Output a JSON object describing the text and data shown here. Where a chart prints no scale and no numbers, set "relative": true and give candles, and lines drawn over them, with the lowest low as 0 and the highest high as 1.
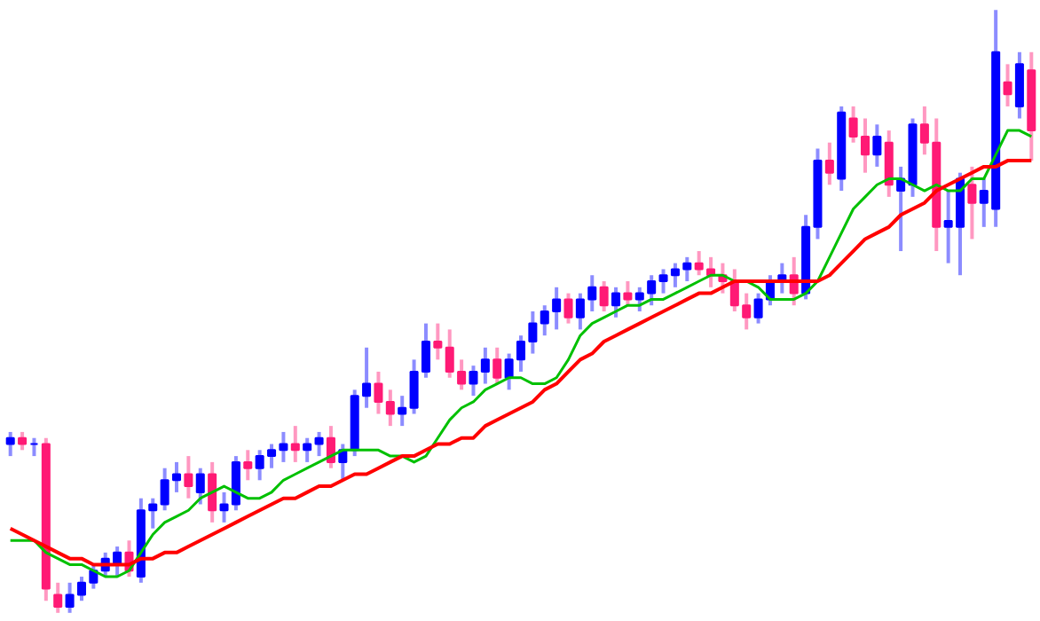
{
  "chart_data": {
    "type": "candlestick",
    "relative": true,
    "tick_labels": false,
    "grid": false,
    "categories": [
      null,
      null,
      null,
      null,
      null,
      null,
      null,
      null,
      null,
      null,
      null,
      null,
      null,
      null,
      null,
      null,
      null,
      null,
      null,
      null,
      null,
      null,
      null,
      null,
      null,
      null,
      null,
      null,
      null,
      null,
      null,
      null,
      null,
      null,
      null,
      null,
      null,
      null,
      null,
      null,
      null,
      null,
      null,
      null,
      null,
      null,
      null,
      null,
      null,
      null,
      null,
      null,
      null,
      null,
      null,
      null,
      null,
      null,
      null,
      null,
      null,
      null,
      null,
      null,
      null,
      null,
      null,
      null,
      null,
      null,
      null,
      null,
      null,
      null,
      null,
      null,
      null,
      null,
      null,
      null,
      null,
      null,
      null,
      null,
      null,
      null,
      null
    ],
    "ohlc": [
      [
        0.28,
        0.3,
        0.26,
        0.29
      ],
      [
        0.29,
        0.3,
        0.27,
        0.28
      ],
      [
        0.28,
        0.29,
        0.26,
        0.28
      ],
      [
        0.28,
        0.29,
        0.02,
        0.04
      ],
      [
        0.03,
        0.05,
        0,
        0.01
      ],
      [
        0.01,
        0.05,
        0,
        0.03
      ],
      [
        0.03,
        0.06,
        0.02,
        0.05
      ],
      [
        0.05,
        0.08,
        0.04,
        0.07
      ],
      [
        0.07,
        0.1,
        0.06,
        0.09
      ],
      [
        0.08,
        0.11,
        0.06,
        0.1
      ],
      [
        0.1,
        0.12,
        0.06,
        0.07
      ],
      [
        0.06,
        0.19,
        0.05,
        0.17
      ],
      [
        0.17,
        0.19,
        0.14,
        0.18
      ],
      [
        0.18,
        0.24,
        0.17,
        0.22
      ],
      [
        0.22,
        0.25,
        0.2,
        0.23
      ],
      [
        0.23,
        0.26,
        0.19,
        0.21
      ],
      [
        0.2,
        0.24,
        0.18,
        0.23
      ],
      [
        0.23,
        0.25,
        0.15,
        0.17
      ],
      [
        0.17,
        0.2,
        0.15,
        0.18
      ],
      [
        0.18,
        0.26,
        0.17,
        0.25
      ],
      [
        0.25,
        0.27,
        0.22,
        0.24
      ],
      [
        0.24,
        0.27,
        0.22,
        0.26
      ],
      [
        0.26,
        0.28,
        0.24,
        0.27
      ],
      [
        0.27,
        0.3,
        0.25,
        0.28
      ],
      [
        0.28,
        0.31,
        0.25,
        0.27
      ],
      [
        0.27,
        0.29,
        0.25,
        0.28
      ],
      [
        0.28,
        0.3,
        0.26,
        0.29
      ],
      [
        0.29,
        0.31,
        0.24,
        0.25
      ],
      [
        0.25,
        0.28,
        0.22,
        0.27
      ],
      [
        0.27,
        0.37,
        0.26,
        0.36
      ],
      [
        0.36,
        0.44,
        0.34,
        0.38
      ],
      [
        0.38,
        0.4,
        0.33,
        0.35
      ],
      [
        0.35,
        0.37,
        0.31,
        0.33
      ],
      [
        0.33,
        0.36,
        0.31,
        0.34
      ],
      [
        0.34,
        0.42,
        0.33,
        0.4
      ],
      [
        0.4,
        0.48,
        0.39,
        0.45
      ],
      [
        0.45,
        0.48,
        0.42,
        0.44
      ],
      [
        0.44,
        0.47,
        0.39,
        0.4
      ],
      [
        0.4,
        0.42,
        0.37,
        0.38
      ],
      [
        0.38,
        0.41,
        0.36,
        0.4
      ],
      [
        0.4,
        0.44,
        0.38,
        0.42
      ],
      [
        0.42,
        0.44,
        0.38,
        0.39
      ],
      [
        0.39,
        0.43,
        0.37,
        0.42
      ],
      [
        0.42,
        0.46,
        0.4,
        0.45
      ],
      [
        0.45,
        0.5,
        0.43,
        0.48
      ],
      [
        0.48,
        0.51,
        0.46,
        0.5
      ],
      [
        0.5,
        0.54,
        0.47,
        0.52
      ],
      [
        0.52,
        0.53,
        0.48,
        0.49
      ],
      [
        0.49,
        0.53,
        0.47,
        0.52
      ],
      [
        0.52,
        0.56,
        0.5,
        0.54
      ],
      [
        0.54,
        0.55,
        0.5,
        0.51
      ],
      [
        0.51,
        0.54,
        0.49,
        0.53
      ],
      [
        0.53,
        0.55,
        0.51,
        0.52
      ],
      [
        0.52,
        0.54,
        0.5,
        0.53
      ],
      [
        0.53,
        0.56,
        0.51,
        0.55
      ],
      [
        0.55,
        0.57,
        0.53,
        0.56
      ],
      [
        0.56,
        0.58,
        0.54,
        0.57
      ],
      [
        0.57,
        0.59,
        0.55,
        0.58
      ],
      [
        0.58,
        0.6,
        0.56,
        0.57
      ],
      [
        0.57,
        0.59,
        0.54,
        0.56
      ],
      [
        0.56,
        0.58,
        0.53,
        0.55
      ],
      [
        0.55,
        0.57,
        0.5,
        0.51
      ],
      [
        0.51,
        0.53,
        0.47,
        0.49
      ],
      [
        0.49,
        0.53,
        0.48,
        0.52
      ],
      [
        0.52,
        0.56,
        0.51,
        0.55
      ],
      [
        0.55,
        0.58,
        0.53,
        0.56
      ],
      [
        0.56,
        0.59,
        0.51,
        0.53
      ],
      [
        0.53,
        0.66,
        0.52,
        0.64
      ],
      [
        0.64,
        0.77,
        0.62,
        0.75
      ],
      [
        0.75,
        0.78,
        0.71,
        0.73
      ],
      [
        0.72,
        0.84,
        0.7,
        0.83
      ],
      [
        0.82,
        0.84,
        0.78,
        0.79
      ],
      [
        0.79,
        0.82,
        0.73,
        0.76
      ],
      [
        0.76,
        0.81,
        0.74,
        0.79
      ],
      [
        0.78,
        0.8,
        0.69,
        0.71
      ],
      [
        0.7,
        0.74,
        0.6,
        0.72
      ],
      [
        0.71,
        0.82,
        0.69,
        0.81
      ],
      [
        0.81,
        0.84,
        0.76,
        0.78
      ],
      [
        0.78,
        0.82,
        0.6,
        0.64
      ],
      [
        0.64,
        0.7,
        0.58,
        0.65
      ],
      [
        0.64,
        0.73,
        0.56,
        0.72
      ],
      [
        0.71,
        0.74,
        0.62,
        0.68
      ],
      [
        0.68,
        0.72,
        0.64,
        0.7
      ],
      [
        0.67,
        1.0,
        0.64,
        0.93
      ],
      [
        0.88,
        0.91,
        0.84,
        0.86
      ],
      [
        0.84,
        0.93,
        0.82,
        0.91
      ],
      [
        0.9,
        0.93,
        0.75,
        0.8
      ]
    ],
    "colors": [
      "#0000ff",
      "#ff1a75",
      "#0000ff",
      "#ff1a75",
      "#ff1a75",
      "#0000ff",
      "#0000ff",
      "#0000ff",
      "#0000ff",
      "#0000ff",
      "#ff1a75",
      "#0000ff",
      "#0000ff",
      "#0000ff",
      "#0000ff",
      "#ff1a75",
      "#0000ff",
      "#ff1a75",
      "#0000ff",
      "#0000ff",
      "#ff1a75",
      "#0000ff",
      "#0000ff",
      "#0000ff",
      "#ff1a75",
      "#0000ff",
      "#0000ff",
      "#ff1a75",
      "#0000ff",
      "#0000ff",
      "#0000ff",
      "#ff1a75",
      "#ff1a75",
      "#0000ff",
      "#0000ff",
      "#0000ff",
      "#ff1a75",
      "#ff1a75",
      "#ff1a75",
      "#0000ff",
      "#0000ff",
      "#ff1a75",
      "#0000ff",
      "#0000ff",
      "#0000ff",
      "#0000ff",
      "#0000ff",
      "#ff1a75",
      "#0000ff",
      "#0000ff",
      "#ff1a75",
      "#0000ff",
      "#ff1a75",
      "#0000ff",
      "#0000ff",
      "#0000ff",
      "#0000ff",
      "#0000ff",
      "#ff1a75",
      "#ff1a75",
      "#ff1a75",
      "#ff1a75",
      "#ff1a75",
      "#0000ff",
      "#0000ff",
      "#0000ff",
      "#ff1a75",
      "#0000ff",
      "#0000ff",
      "#ff1a75",
      "#0000ff",
      "#ff1a75",
      "#ff1a75",
      "#0000ff",
      "#ff1a75",
      "#0000ff",
      "#0000ff",
      "#ff1a75",
      "#ff1a75",
      "#0000ff",
      "#0000ff",
      "#ff1a75",
      "#0000ff",
      "#0000ff",
      "#ff1a75",
      "#0000ff",
      "#ff1a75"
    ],
    "series": [
      {
        "type": "line",
        "color": "#00c000",
        "values": [
          0.12,
          0.12,
          0.12,
          0.1,
          0.09,
          0.08,
          0.08,
          0.07,
          0.06,
          0.06,
          0.07,
          0.1,
          0.13,
          0.15,
          0.16,
          0.17,
          0.19,
          0.2,
          0.21,
          0.2,
          0.19,
          0.19,
          0.2,
          0.22,
          0.23,
          0.24,
          0.25,
          0.26,
          0.27,
          0.27,
          0.27,
          0.27,
          0.26,
          0.26,
          0.25,
          0.26,
          0.29,
          0.32,
          0.34,
          0.35,
          0.37,
          0.38,
          0.39,
          0.39,
          0.38,
          0.38,
          0.39,
          0.42,
          0.46,
          0.48,
          0.49,
          0.5,
          0.51,
          0.51,
          0.52,
          0.52,
          0.53,
          0.54,
          0.55,
          0.56,
          0.56,
          0.55,
          0.55,
          0.54,
          0.52,
          0.52,
          0.52,
          0.53,
          0.55,
          0.59,
          0.63,
          0.67,
          0.69,
          0.71,
          0.72,
          0.72,
          0.71,
          0.7,
          0.71,
          0.7,
          0.7,
          0.72,
          0.72,
          0.76,
          0.8,
          0.8,
          0.79
        ]
      },
      {
        "type": "line",
        "color": "#ff0000",
        "values": [
          0.14,
          0.13,
          0.12,
          0.11,
          0.1,
          0.09,
          0.09,
          0.08,
          0.08,
          0.08,
          0.08,
          0.09,
          0.09,
          0.1,
          0.1,
          0.11,
          0.12,
          0.13,
          0.14,
          0.15,
          0.16,
          0.17,
          0.18,
          0.19,
          0.19,
          0.2,
          0.21,
          0.21,
          0.22,
          0.23,
          0.23,
          0.24,
          0.25,
          0.26,
          0.26,
          0.27,
          0.28,
          0.28,
          0.29,
          0.29,
          0.31,
          0.32,
          0.33,
          0.34,
          0.35,
          0.37,
          0.38,
          0.4,
          0.42,
          0.43,
          0.45,
          0.46,
          0.47,
          0.48,
          0.49,
          0.5,
          0.51,
          0.52,
          0.53,
          0.53,
          0.54,
          0.55,
          0.55,
          0.55,
          0.55,
          0.55,
          0.55,
          0.55,
          0.55,
          0.56,
          0.58,
          0.6,
          0.62,
          0.63,
          0.64,
          0.66,
          0.67,
          0.68,
          0.7,
          0.71,
          0.72,
          0.73,
          0.74,
          0.74,
          0.75,
          0.75,
          0.75
        ]
      }
    ]
  }
}
